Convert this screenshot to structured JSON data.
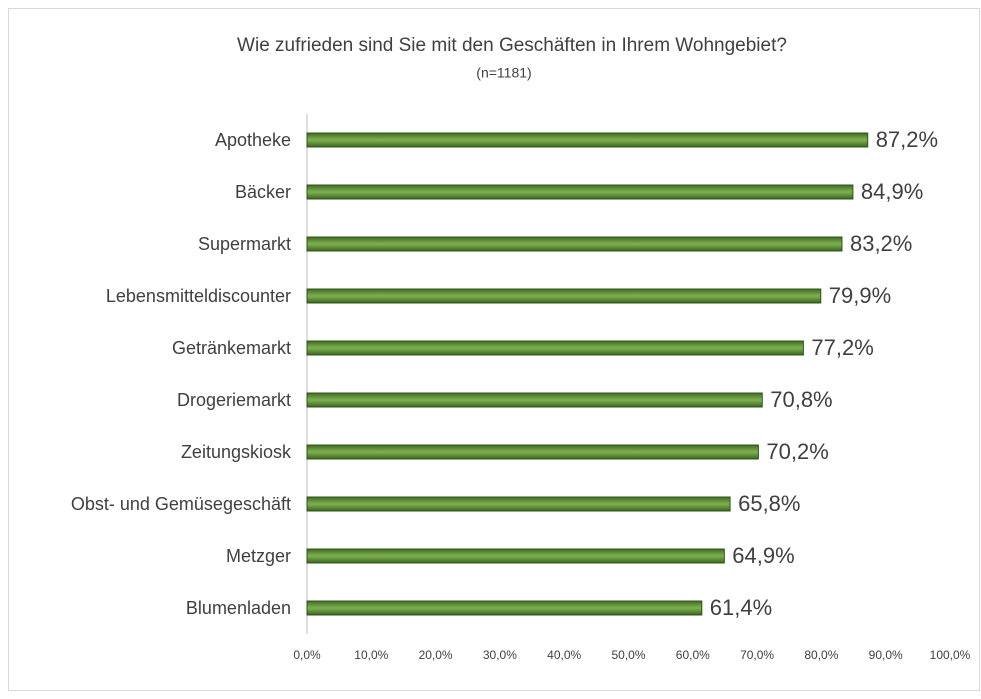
{
  "chart_data": {
    "type": "hbar",
    "title": "Wie zufrieden sind Sie mit den Geschäften in Ihrem Wohngebiet?",
    "subtitle": "(n=1181)",
    "categories": [
      "Apotheke",
      "Bäcker",
      "Supermarkt",
      "Lebensmitteldiscounter",
      "Getränkemarkt",
      "Drogeriemarkt",
      "Zeitungskiosk",
      "Obst- und Gemüsegeschäft",
      "Metzger",
      "Blumenladen"
    ],
    "values": [
      87.2,
      84.9,
      83.2,
      79.9,
      77.2,
      70.8,
      70.2,
      65.8,
      64.9,
      61.4
    ],
    "value_labels": [
      "87,2%",
      "84,9%",
      "83,2%",
      "79,9%",
      "77,2%",
      "70,8%",
      "70,2%",
      "65,8%",
      "64,9%",
      "61,4%"
    ],
    "color": "#7aab4c",
    "xlim": [
      0,
      100
    ],
    "xticks": [
      {
        "value": 0,
        "label": "0,0%"
      },
      {
        "value": 10,
        "label": "10,0%"
      },
      {
        "value": 20,
        "label": "20,0%"
      },
      {
        "value": 30,
        "label": "30,0%"
      },
      {
        "value": 40,
        "label": "40,0%"
      },
      {
        "value": 50,
        "label": "50,0%"
      },
      {
        "value": 60,
        "label": "60,0%"
      },
      {
        "value": 70,
        "label": "70,0%"
      },
      {
        "value": 80,
        "label": "80,0%"
      },
      {
        "value": 90,
        "label": "90,0%"
      },
      {
        "value": 100,
        "label": "100,0%"
      }
    ],
    "grid": false
  }
}
